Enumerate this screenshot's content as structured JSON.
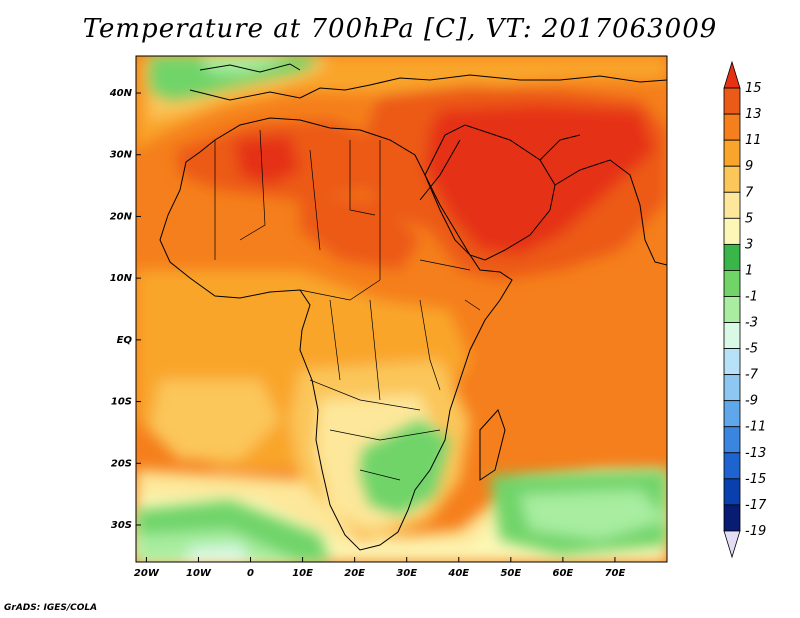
{
  "title": "Temperature at 700hPa [C], VT: 2017063009",
  "credit": "GrADS: IGES/COLA",
  "map": {
    "lon_range": [
      -22,
      80
    ],
    "lat_range": [
      -36,
      46
    ],
    "lat_ticks": [
      {
        "value": 40,
        "label": "40N"
      },
      {
        "value": 30,
        "label": "30N"
      },
      {
        "value": 20,
        "label": "20N"
      },
      {
        "value": 10,
        "label": "10N"
      },
      {
        "value": 0,
        "label": "EQ"
      },
      {
        "value": -10,
        "label": "10S"
      },
      {
        "value": -20,
        "label": "20S"
      },
      {
        "value": -30,
        "label": "30S"
      }
    ],
    "lon_ticks": [
      {
        "value": -20,
        "label": "20W"
      },
      {
        "value": -10,
        "label": "10W"
      },
      {
        "value": 0,
        "label": "0"
      },
      {
        "value": 10,
        "label": "10E"
      },
      {
        "value": 20,
        "label": "20E"
      },
      {
        "value": 30,
        "label": "30E"
      },
      {
        "value": 40,
        "label": "40E"
      },
      {
        "value": 50,
        "label": "50E"
      },
      {
        "value": 60,
        "label": "60E"
      },
      {
        "value": 70,
        "label": "70E"
      }
    ]
  },
  "colorbar": {
    "labels": [
      "15",
      "13",
      "11",
      "9",
      "7",
      "5",
      "3",
      "1",
      "-1",
      "-3",
      "-5",
      "-7",
      "-9",
      "-11",
      "-13",
      "-15",
      "-17",
      "-19"
    ],
    "colors": [
      "#e53212",
      "#ec5a18",
      "#f57f1c",
      "#f9a52b",
      "#fbc65a",
      "#fde79a",
      "#fcf7b6",
      "#3ab54a",
      "#70d469",
      "#a8eda0",
      "#daf8e6",
      "#b6e1f7",
      "#8ec7f2",
      "#5fa7ea",
      "#3a85e0",
      "#1d64d1",
      "#0a3fae",
      "#081c74",
      "#e4ddf5"
    ]
  }
}
